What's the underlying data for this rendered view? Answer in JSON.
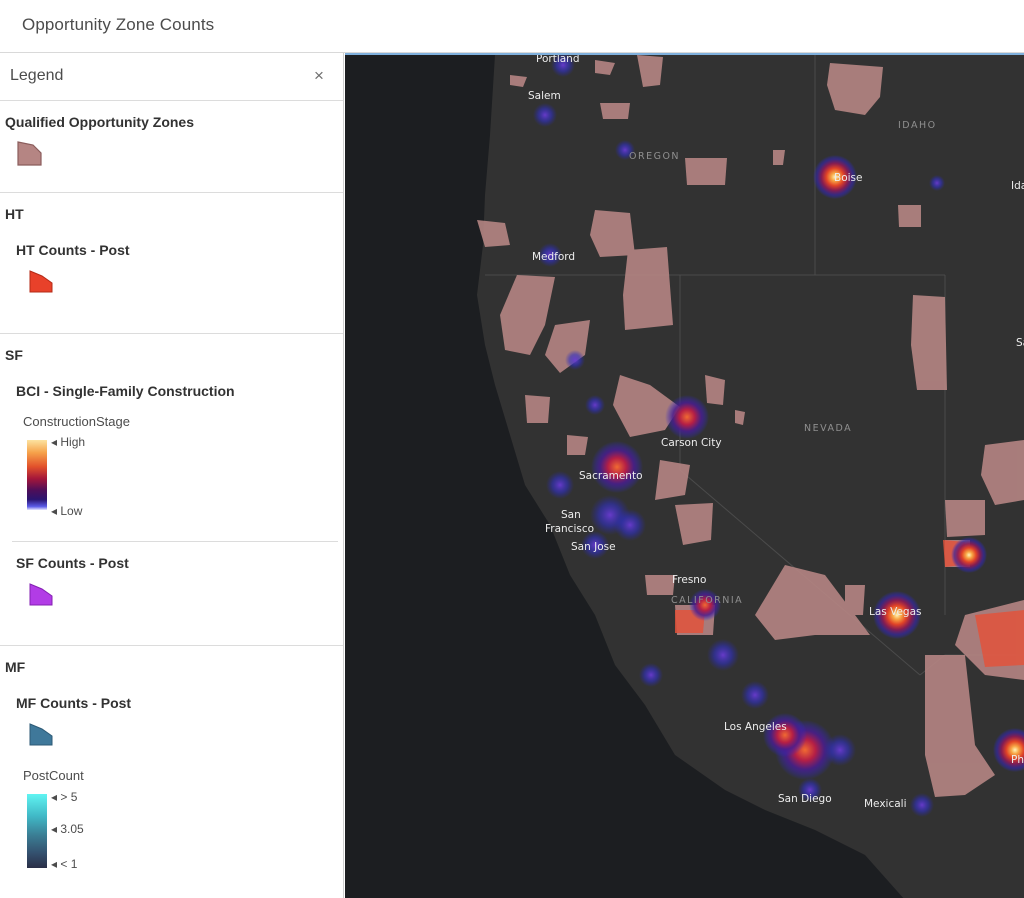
{
  "header": {
    "title": "Opportunity Zone Counts"
  },
  "legend": {
    "title": "Legend",
    "close_icon": "×",
    "sections": {
      "qoz": {
        "title": "Qualified Opportunity Zones",
        "swatch_color": "#b58583"
      },
      "ht": {
        "title": "HT",
        "layer": "HT Counts - Post",
        "swatch_color": "#e8412a"
      },
      "sf": {
        "title": "SF",
        "layer1": "BCI - Single-Family Construction",
        "field": "ConstructionStage",
        "high": "High",
        "low": "Low",
        "layer2": "SF Counts - Post",
        "swatch_color": "#b23ce6"
      },
      "mf": {
        "title": "MF",
        "layer": "MF Counts - Post",
        "swatch_color": "#3f789a",
        "field": "PostCount",
        "ticks": [
          "> 5",
          "3.05",
          "< 1"
        ]
      }
    }
  },
  "map": {
    "cities": [
      "Portland",
      "Salem",
      "Medford",
      "Boise",
      "Ida",
      "Carson City",
      "Sacramento",
      "San",
      "Francisco",
      "San Jose",
      "Fresno",
      "Las Vegas",
      "Los Angeles",
      "San Diego",
      "Mexicali",
      "Sa",
      "Ph"
    ],
    "states": [
      "OREGON",
      "IDAHO",
      "NEVADA",
      "CALIFORNIA"
    ]
  }
}
